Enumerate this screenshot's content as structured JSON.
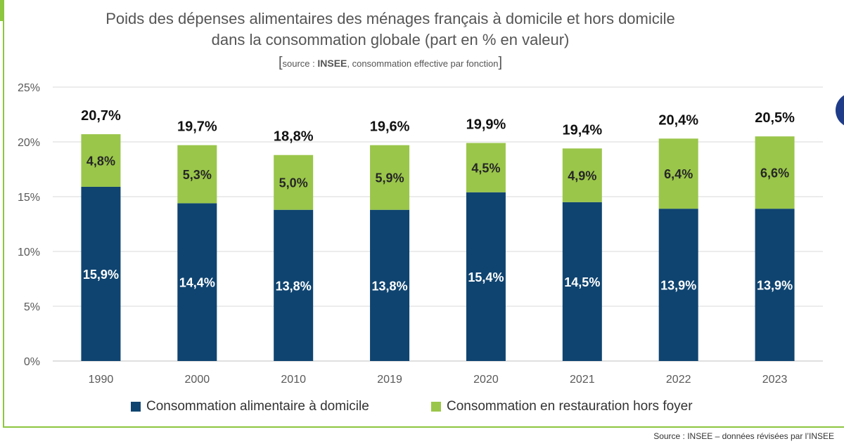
{
  "title_lines": [
    "Poids des dépenses alimentaires des ménages français à domicile et hors domicile",
    "dans la consommation globale (part en % en valeur)"
  ],
  "source_note": {
    "open": "[",
    "prefix": "source : ",
    "org": "INSEE",
    "rest": ", consommation effective par fonction",
    "close": "]"
  },
  "footer_source": "Source : INSEE – données révisées par l’INSEE",
  "colors": {
    "domicile": "#0f4470",
    "hors_foyer": "#9ac64a",
    "accent": "#8dc63f",
    "grid": "#d9d9d9",
    "axis_text": "#595959"
  },
  "chart_data": {
    "type": "bar",
    "stacked": true,
    "categories": [
      "1990",
      "2000",
      "2010",
      "2019",
      "2020",
      "2021",
      "2022",
      "2023"
    ],
    "series": [
      {
        "name": "Consommation alimentaire à domicile",
        "values": [
          15.9,
          14.4,
          13.8,
          13.8,
          15.4,
          14.5,
          13.9,
          13.9
        ],
        "labels": [
          "15,9%",
          "14,4%",
          "13,8%",
          "13,8%",
          "15,4%",
          "14,5%",
          "13,9%",
          "13,9%"
        ]
      },
      {
        "name": "Consommation en restauration hors foyer",
        "values": [
          4.8,
          5.3,
          5.0,
          5.9,
          4.5,
          4.9,
          6.4,
          6.6
        ],
        "labels": [
          "4,8%",
          "5,3%",
          "5,0%",
          "5,9%",
          "4,5%",
          "4,9%",
          "6,4%",
          "6,6%"
        ]
      }
    ],
    "totals": [
      20.7,
      19.7,
      18.8,
      19.6,
      19.9,
      19.4,
      20.4,
      20.5
    ],
    "total_labels": [
      "20,7%",
      "19,7%",
      "18,8%",
      "19,6%",
      "19,9%",
      "19,4%",
      "20,4%",
      "20,5%"
    ],
    "ylim": [
      0,
      25
    ],
    "yticks": [
      0,
      5,
      10,
      15,
      20,
      25
    ],
    "ytick_labels": [
      "0%",
      "5%",
      "10%",
      "15%",
      "20%",
      "25%"
    ],
    "grid": true,
    "legend_position": "bottom"
  }
}
